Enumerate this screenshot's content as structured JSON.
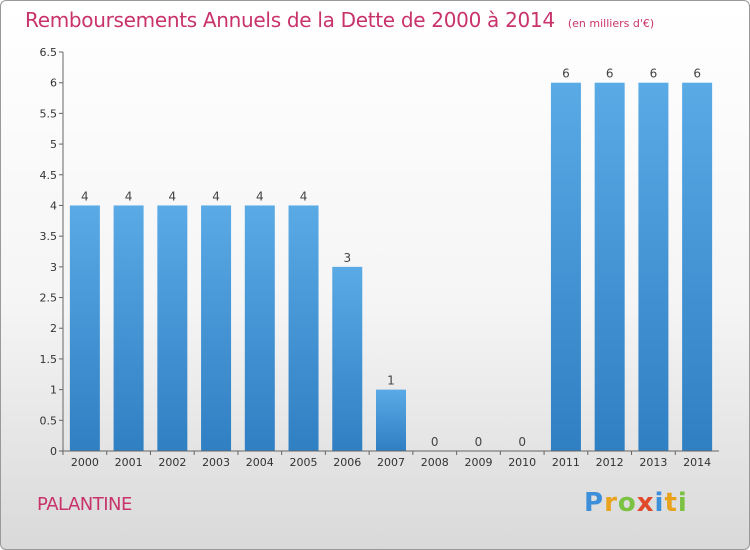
{
  "title": "Remboursements Annuels de la Dette de 2000 à 2014",
  "unit": "(en milliers d'€)",
  "commune": "PALANTINE",
  "logo": {
    "letters": [
      "P",
      "r",
      "o",
      "x",
      "i",
      "t",
      "i"
    ],
    "colors": [
      "#3c8fd8",
      "#e8a21b",
      "#7cc242",
      "#e04a2b",
      "#3c8fd8",
      "#e8a21b",
      "#7cc242"
    ]
  },
  "colors": {
    "bar": "#4d9fdf",
    "bar_dark": "#2f7fc3",
    "title": "#c8336b"
  },
  "chart_data": {
    "type": "bar",
    "categories": [
      "2000",
      "2001",
      "2002",
      "2003",
      "2004",
      "2005",
      "2006",
      "2007",
      "2008",
      "2009",
      "2010",
      "2011",
      "2012",
      "2013",
      "2014"
    ],
    "values": [
      4,
      4,
      4,
      4,
      4,
      4,
      3,
      1,
      0,
      0,
      0,
      6,
      6,
      6,
      6
    ],
    "value_labels": [
      "4",
      "4",
      "4",
      "4",
      "4",
      "4",
      "3",
      "1",
      "0",
      "0",
      "0",
      "6",
      "6",
      "6",
      "6"
    ],
    "ylim": [
      0,
      6.5
    ],
    "yticks": [
      "0",
      "0.5",
      "1",
      "1.5",
      "2",
      "2.5",
      "3",
      "3.5",
      "4",
      "4.5",
      "5",
      "5.5",
      "6",
      "6.5"
    ],
    "grid": false
  }
}
